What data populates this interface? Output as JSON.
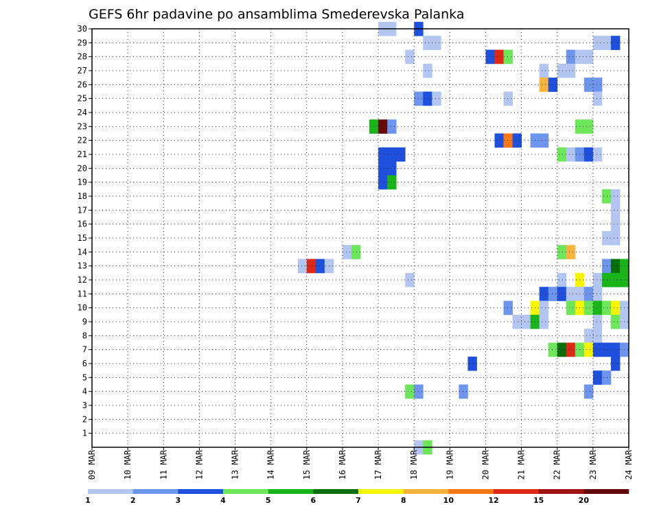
{
  "chart_data": {
    "type": "heatmap",
    "title": "GEFS 6hr padavine po ansamblima Smederevska Palanka",
    "xlabel": "",
    "ylabel": "",
    "x_ticks": [
      "09 MAR",
      "10 MAR",
      "11 MAR",
      "12 MAR",
      "13 MAR",
      "14 MAR",
      "15 MAR",
      "16 MAR",
      "17 MAR",
      "18 MAR",
      "19 MAR",
      "20 MAR",
      "21 MAR",
      "22 MAR",
      "23 MAR",
      "24 MAR"
    ],
    "x_range_days": [
      0,
      15
    ],
    "steps_per_day": 4,
    "y_ticks": [
      1,
      2,
      3,
      4,
      5,
      6,
      7,
      8,
      9,
      10,
      11,
      12,
      13,
      14,
      15,
      16,
      17,
      18,
      19,
      20,
      21,
      22,
      23,
      24,
      25,
      26,
      27,
      28,
      29,
      30
    ],
    "y_range": [
      0,
      30
    ],
    "grid": true,
    "colorbar": {
      "labels": [
        "1",
        "2",
        "3",
        "4",
        "5",
        "6",
        "7",
        "8",
        "10",
        "12",
        "15",
        "20"
      ],
      "colors": [
        "#b3c6f2",
        "#6e95ee",
        "#1e50dc",
        "#6ee65a",
        "#19b419",
        "#0a6e0a",
        "#f6f600",
        "#fab43c",
        "#fa7814",
        "#dc2814",
        "#a01414",
        "#640a0a"
      ]
    },
    "member_cells": [
      {
        "m": 30,
        "s": [
          [
            32,
            1
          ],
          [
            33,
            1
          ],
          [
            36,
            3
          ]
        ]
      },
      {
        "m": 29,
        "s": [
          [
            37,
            1
          ],
          [
            38,
            1
          ],
          [
            56,
            1
          ],
          [
            57,
            1
          ],
          [
            58,
            3
          ]
        ]
      },
      {
        "m": 28,
        "s": [
          [
            35,
            1
          ],
          [
            44,
            3
          ],
          [
            45,
            10
          ],
          [
            46,
            4
          ],
          [
            53,
            2
          ],
          [
            54,
            1
          ],
          [
            55,
            1
          ]
        ]
      },
      {
        "m": 27,
        "s": [
          [
            37,
            1
          ],
          [
            50,
            1
          ],
          [
            52,
            1
          ],
          [
            53,
            1
          ]
        ]
      },
      {
        "m": 26,
        "s": [
          [
            50,
            8
          ],
          [
            51,
            3
          ],
          [
            55,
            2
          ],
          [
            56,
            2
          ]
        ]
      },
      {
        "m": 25,
        "s": [
          [
            36,
            2
          ],
          [
            37,
            3
          ],
          [
            38,
            1
          ],
          [
            46,
            1
          ],
          [
            56,
            1
          ]
        ]
      },
      {
        "m": 23,
        "s": [
          [
            31,
            5
          ],
          [
            32,
            12
          ],
          [
            33,
            2
          ],
          [
            54,
            4
          ],
          [
            55,
            4
          ]
        ]
      },
      {
        "m": 22,
        "s": [
          [
            45,
            3
          ],
          [
            46,
            9
          ],
          [
            47,
            3
          ],
          [
            49,
            2
          ],
          [
            50,
            2
          ]
        ]
      },
      {
        "m": 21,
        "s": [
          [
            32,
            3
          ],
          [
            33,
            3
          ],
          [
            34,
            3
          ],
          [
            52,
            4
          ],
          [
            53,
            1
          ],
          [
            54,
            2
          ],
          [
            55,
            3
          ],
          [
            56,
            1
          ]
        ]
      },
      {
        "m": 20,
        "s": [
          [
            32,
            3
          ],
          [
            33,
            3
          ]
        ]
      },
      {
        "m": 19,
        "s": [
          [
            32,
            3
          ],
          [
            33,
            5
          ]
        ]
      },
      {
        "m": 18,
        "s": [
          [
            57,
            4
          ],
          [
            58,
            1
          ]
        ]
      },
      {
        "m": 17,
        "s": [
          [
            58,
            1
          ]
        ]
      },
      {
        "m": 16,
        "s": [
          [
            58,
            1
          ]
        ]
      },
      {
        "m": 15,
        "s": [
          [
            57,
            1
          ],
          [
            58,
            1
          ]
        ]
      },
      {
        "m": 14,
        "s": [
          [
            28,
            1
          ],
          [
            29,
            4
          ],
          [
            52,
            4
          ],
          [
            53,
            8
          ]
        ]
      },
      {
        "m": 13,
        "s": [
          [
            23,
            1
          ],
          [
            24,
            10
          ],
          [
            25,
            3
          ],
          [
            26,
            1
          ],
          [
            57,
            2
          ],
          [
            58,
            6
          ],
          [
            59,
            5
          ]
        ]
      },
      {
        "m": 12,
        "s": [
          [
            35,
            1
          ],
          [
            52,
            1
          ],
          [
            54,
            7
          ],
          [
            56,
            1
          ],
          [
            57,
            5
          ],
          [
            58,
            5
          ],
          [
            59,
            5
          ]
        ]
      },
      {
        "m": 11,
        "s": [
          [
            50,
            3
          ],
          [
            51,
            2
          ],
          [
            52,
            3
          ],
          [
            53,
            1
          ],
          [
            54,
            1
          ],
          [
            55,
            2
          ],
          [
            56,
            1
          ]
        ]
      },
      {
        "m": 10,
        "s": [
          [
            46,
            2
          ],
          [
            49,
            7
          ],
          [
            50,
            1
          ],
          [
            53,
            4
          ],
          [
            54,
            7
          ],
          [
            55,
            4
          ],
          [
            56,
            5
          ],
          [
            57,
            4
          ],
          [
            58,
            7
          ],
          [
            59,
            1
          ]
        ]
      },
      {
        "m": 9,
        "s": [
          [
            47,
            1
          ],
          [
            48,
            1
          ],
          [
            49,
            5
          ],
          [
            50,
            1
          ],
          [
            56,
            1
          ],
          [
            58,
            4
          ],
          [
            59,
            1
          ]
        ]
      },
      {
        "m": 8,
        "s": [
          [
            55,
            1
          ],
          [
            56,
            1
          ]
        ]
      },
      {
        "m": 7,
        "s": [
          [
            51,
            4
          ],
          [
            52,
            6
          ],
          [
            53,
            10
          ],
          [
            54,
            4
          ],
          [
            55,
            7
          ],
          [
            56,
            3
          ],
          [
            57,
            3
          ],
          [
            58,
            3
          ],
          [
            59,
            2
          ]
        ]
      },
      {
        "m": 6,
        "s": [
          [
            42,
            3
          ],
          [
            58,
            3
          ]
        ]
      },
      {
        "m": 5,
        "s": [
          [
            56,
            3
          ],
          [
            57,
            2
          ]
        ]
      },
      {
        "m": 4,
        "s": [
          [
            35,
            4
          ],
          [
            36,
            2
          ],
          [
            41,
            2
          ],
          [
            55,
            2
          ]
        ]
      },
      {
        "m": 0,
        "s": [
          [
            36,
            1
          ],
          [
            37,
            4
          ]
        ]
      }
    ]
  }
}
